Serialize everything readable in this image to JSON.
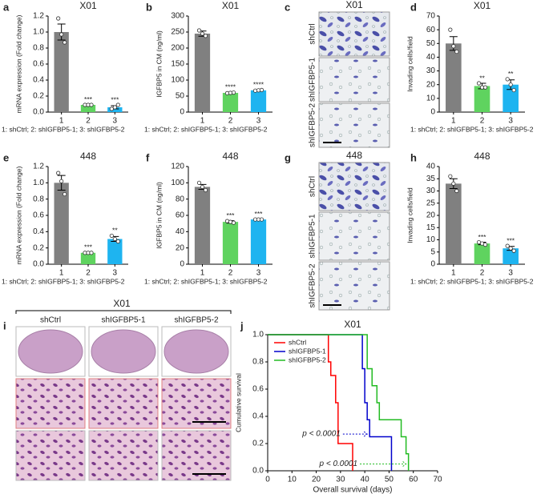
{
  "chart_data": [
    {
      "type": "bar",
      "panel": "a",
      "title": "X01",
      "ylabel": "mRNA expression (Fold change)",
      "categories": [
        "1",
        "2",
        "3"
      ],
      "values": [
        1.0,
        0.09,
        0.06
      ],
      "errors": [
        0.1,
        0.005,
        0.02
      ],
      "points": [
        [
          1.17,
          0.97,
          0.87
        ],
        [
          0.09,
          0.09,
          0.09
        ],
        [
          0.04,
          0.06,
          0.09
        ]
      ],
      "significance": [
        null,
        "***",
        "***"
      ],
      "colors": [
        "#808080",
        "#5fd35f",
        "#1eb4f0"
      ],
      "ylim": [
        0,
        1.2
      ],
      "yticks": [
        {
          "value": 0,
          "label": "0.0"
        },
        0.2,
        0.4,
        0.6,
        0.8,
        {
          "value": 1,
          "label": "1.0"
        },
        1.2
      ],
      "caption": "1: shCtrl; 2: shIGFBP5-1; 3: shIGFBP5-2"
    },
    {
      "type": "bar",
      "panel": "b",
      "title": "X01",
      "ylabel": "IGFBP5 in CM (ng/ml)",
      "categories": [
        "1",
        "2",
        "3"
      ],
      "values": [
        245,
        60,
        68
      ],
      "errors": [
        8,
        2,
        2
      ],
      "points": [
        [
          255,
          245,
          238
        ],
        [
          59,
          60,
          61
        ],
        [
          67,
          68,
          69
        ]
      ],
      "significance": [
        null,
        "****",
        "****"
      ],
      "colors": [
        "#808080",
        "#5fd35f",
        "#1eb4f0"
      ],
      "ylim": [
        0,
        300
      ],
      "yticks": [
        0,
        50,
        100,
        150,
        200,
        250,
        300
      ],
      "caption": "1: shCtrl; 2: shIGFBP5-1; 3: shIGFBP5-2"
    },
    {
      "type": "bar",
      "panel": "d",
      "title": "X01",
      "ylabel": "Invading cells/field",
      "categories": [
        "1",
        "2",
        "3"
      ],
      "values": [
        50,
        19,
        20
      ],
      "errors": [
        5,
        2,
        3.5
      ],
      "points": [
        [
          60,
          48,
          44
        ],
        [
          21,
          18,
          18
        ],
        [
          24,
          20,
          16
        ]
      ],
      "significance": [
        null,
        "**",
        "**"
      ],
      "colors": [
        "#808080",
        "#5fd35f",
        "#1eb4f0"
      ],
      "ylim": [
        0,
        70
      ],
      "yticks": [
        0,
        10,
        20,
        30,
        40,
        50,
        60,
        70
      ],
      "caption": "1: shCtrl; 2: shIGFBP5-1; 3: shIGFBP5-2"
    },
    {
      "type": "bar",
      "panel": "e",
      "title": "448",
      "ylabel": "mRNA expression (Fold change)",
      "categories": [
        "1",
        "2",
        "3"
      ],
      "values": [
        1.0,
        0.14,
        0.31
      ],
      "errors": [
        0.09,
        0.005,
        0.03
      ],
      "points": [
        [
          1.12,
          1.02,
          0.86
        ],
        [
          0.14,
          0.14,
          0.14
        ],
        [
          0.35,
          0.31,
          0.28
        ]
      ],
      "significance": [
        null,
        "***",
        "**"
      ],
      "colors": [
        "#808080",
        "#5fd35f",
        "#1eb4f0"
      ],
      "ylim": [
        0,
        1.2
      ],
      "yticks": [
        {
          "value": 0,
          "label": "0.0"
        },
        0.2,
        0.4,
        0.6,
        0.8,
        {
          "value": 1,
          "label": "1.0"
        },
        1.2
      ],
      "caption": "1: shCtrl; 2: shIGFBP5-1; 3: shIGFBP5-2"
    },
    {
      "type": "bar",
      "panel": "f",
      "title": "448",
      "ylabel": "IGFBP5 in CM (ng/ml)",
      "categories": [
        "1",
        "2",
        "3"
      ],
      "values": [
        95,
        52,
        55
      ],
      "errors": [
        3,
        1.5,
        0.5
      ],
      "points": [
        [
          100,
          95,
          91
        ],
        [
          53,
          52,
          51
        ],
        [
          55,
          55,
          55
        ]
      ],
      "significance": [
        null,
        "***",
        "***"
      ],
      "colors": [
        "#808080",
        "#5fd35f",
        "#1eb4f0"
      ],
      "ylim": [
        0,
        120
      ],
      "yticks": [
        0,
        20,
        40,
        60,
        80,
        100,
        120
      ],
      "caption": "1: shCtrl; 2: shIGFBP5-1; 3: shIGFBP5-2"
    },
    {
      "type": "bar",
      "panel": "h",
      "title": "448",
      "ylabel": "Invading cells/field",
      "categories": [
        "1",
        "2",
        "3"
      ],
      "values": [
        33,
        8.5,
        6.5
      ],
      "errors": [
        2,
        0.5,
        0.8
      ],
      "points": [
        [
          36,
          33,
          30
        ],
        [
          9,
          8.5,
          8
        ],
        [
          7.5,
          6.5,
          5.5
        ]
      ],
      "significance": [
        null,
        "***",
        "***"
      ],
      "colors": [
        "#808080",
        "#5fd35f",
        "#1eb4f0"
      ],
      "ylim": [
        0,
        40
      ],
      "yticks": [
        0,
        5,
        10,
        15,
        20,
        25,
        30,
        35,
        40
      ],
      "caption": "1: shCtrl; 2: shIGFBP5-1; 3: shIGFBP5-2"
    },
    {
      "type": "step",
      "panel": "j",
      "title": "X01",
      "xlabel": "Overall survival (days)",
      "ylabel": "Cumulative survival",
      "series": [
        {
          "name": "shCtrl",
          "color": "#ff0000",
          "x": [
            0,
            25,
            26,
            28,
            29,
            35
          ],
          "values": [
            1,
            0.8,
            0.7,
            0.5,
            0.2,
            0
          ]
        },
        {
          "name": "shIGFBP5-1",
          "color": "#0000cc",
          "x": [
            0,
            39,
            40,
            41,
            42,
            51
          ],
          "values": [
            1,
            0.75,
            0.5,
            0.375,
            0.25,
            0
          ]
        },
        {
          "name": "shIGFBP5-2",
          "color": "#22bb22",
          "x": [
            0,
            41,
            43,
            45,
            46,
            55,
            57,
            58
          ],
          "values": [
            1,
            0.75,
            0.625,
            0.5,
            0.375,
            0.25,
            0.125,
            0
          ]
        }
      ],
      "annotations": [
        {
          "text": "p < 0.0001",
          "color": "#0000cc"
        },
        {
          "text": "p < 0.0001",
          "color": "#22bb22"
        }
      ],
      "xlim": [
        0,
        70
      ],
      "xticks": [
        0,
        10,
        20,
        30,
        40,
        50,
        60,
        70
      ],
      "ylim": [
        0,
        1
      ],
      "yticks": [
        {
          "value": 0,
          "label": "0.0"
        },
        0.2,
        0.4,
        0.6,
        0.8,
        {
          "value": 1,
          "label": "1.0"
        }
      ],
      "legend": "upper-left"
    }
  ],
  "image_panels": [
    {
      "letter": "c",
      "title": "X01",
      "rows": [
        "shCtrl",
        "shIGFBP5-1",
        "shIGFBP5-2"
      ]
    },
    {
      "letter": "g",
      "title": "448",
      "rows": [
        "shCtrl",
        "shIGFBP5-1",
        "shIGFBP5-2"
      ]
    },
    {
      "letter": "i",
      "title": "X01",
      "columns": [
        "shCtrl",
        "shIGFBP5-1",
        "shIGFBP5-2"
      ]
    }
  ]
}
